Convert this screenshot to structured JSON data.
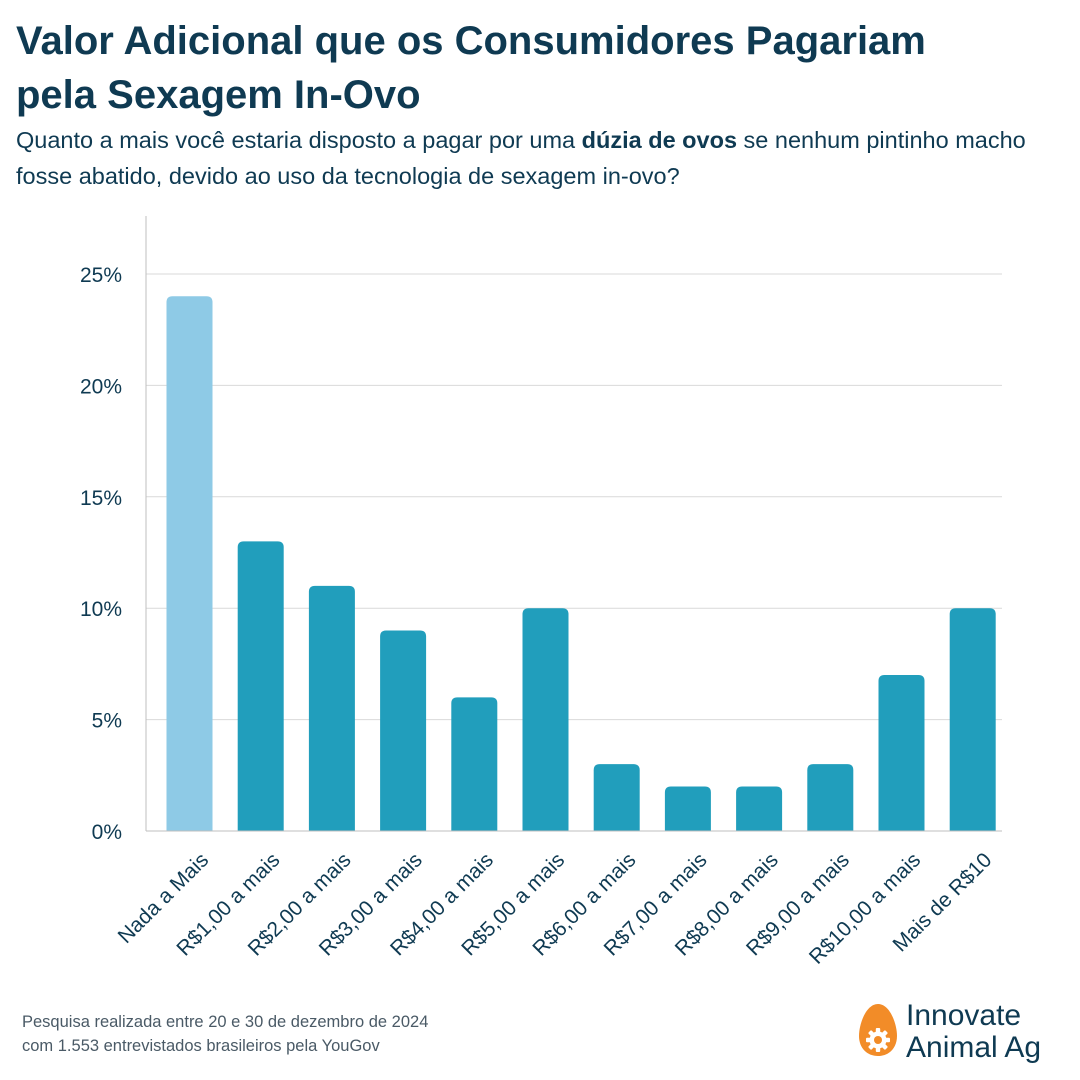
{
  "header": {
    "title_line1": "Valor Adicional que os Consumidores Pagariam",
    "title_line2": "pela Sexagem In-Ovo",
    "subtitle_before": "Quanto a mais você estaria disposto a pagar por uma ",
    "subtitle_bold": "dúzia de ovos",
    "subtitle_after": " se nenhum pintinho macho fosse abatido, devido ao uso da tecnologia de sexagem in-ovo?"
  },
  "chart_data": {
    "type": "bar",
    "categories": [
      "Nada a Mais",
      "R$1,00 a mais",
      "R$2,00 a mais",
      "R$3,00 a mais",
      "R$4,00 a mais",
      "R$5,00 a mais",
      "R$6,00 a mais",
      "R$7,00 a mais",
      "R$8,00 a mais",
      "R$9,00 a mais",
      "R$10,00 a mais",
      "Mais de R$10"
    ],
    "values": [
      24,
      13,
      11,
      9,
      6,
      10,
      3,
      2,
      2,
      3,
      7,
      10
    ],
    "ylim": [
      0,
      27
    ],
    "yticks": [
      0,
      5,
      10,
      15,
      20,
      25
    ],
    "ytick_labels": [
      "0%",
      "5%",
      "10%",
      "15%",
      "20%",
      "25%"
    ],
    "grid": "horizontal",
    "colors": {
      "highlight": "#8ecae6",
      "default": "#219ebc",
      "text": "#0f3a52",
      "grid": "#d9d9d9"
    }
  },
  "footer": {
    "note_line1": "Pesquisa realizada entre 20 e 30 de dezembro de 2024",
    "note_line2": "com 1.553 entrevistados brasileiros pela YouGov"
  },
  "logo": {
    "line1": "Innovate",
    "line2": "Animal Ag",
    "egg_color": "#f28c28",
    "icon": "egg-gear-icon"
  }
}
